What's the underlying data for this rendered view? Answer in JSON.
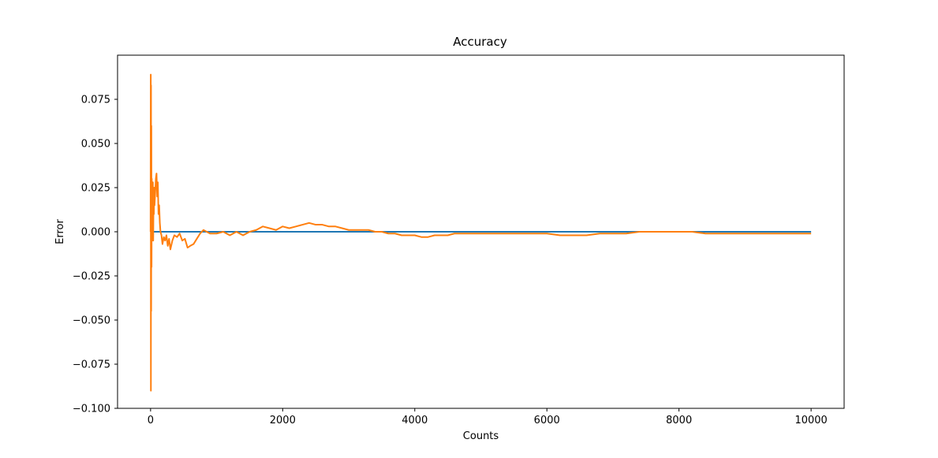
{
  "chart_data": {
    "type": "line",
    "title": "Accuracy",
    "xlabel": "Counts",
    "ylabel": "Error",
    "xlim": [
      -500,
      10500
    ],
    "ylim": [
      -0.1,
      0.1
    ],
    "x_ticks": [
      {
        "value": 0,
        "label": "0"
      },
      {
        "value": 2000,
        "label": "2000"
      },
      {
        "value": 4000,
        "label": "4000"
      },
      {
        "value": 6000,
        "label": "6000"
      },
      {
        "value": 8000,
        "label": "8000"
      },
      {
        "value": 10000,
        "label": "10000"
      }
    ],
    "y_ticks": [
      {
        "value": -0.1,
        "label": "−0.100"
      },
      {
        "value": -0.075,
        "label": "−0.075"
      },
      {
        "value": -0.05,
        "label": "−0.050"
      },
      {
        "value": -0.025,
        "label": "−0.025"
      },
      {
        "value": 0.0,
        "label": "0.000"
      },
      {
        "value": 0.025,
        "label": "0.025"
      },
      {
        "value": 0.05,
        "label": "0.050"
      },
      {
        "value": 0.075,
        "label": "0.075"
      }
    ],
    "grid": false,
    "series": [
      {
        "color": "#1f77b4",
        "x": [
          0,
          10000
        ],
        "y": [
          0.0,
          0.0
        ]
      },
      {
        "color": "#ff7f0e",
        "x": [
          0,
          3,
          5,
          7,
          9,
          12,
          15,
          18,
          22,
          26,
          30,
          35,
          40,
          45,
          50,
          55,
          60,
          70,
          80,
          90,
          100,
          110,
          120,
          130,
          140,
          150,
          165,
          180,
          200,
          220,
          240,
          260,
          280,
          300,
          330,
          360,
          400,
          440,
          480,
          520,
          560,
          600,
          650,
          700,
          750,
          800,
          900,
          1000,
          1100,
          1200,
          1300,
          1400,
          1500,
          1600,
          1700,
          1800,
          1900,
          2000,
          2100,
          2200,
          2300,
          2400,
          2500,
          2600,
          2700,
          2800,
          2900,
          3000,
          3100,
          3200,
          3300,
          3400,
          3500,
          3600,
          3700,
          3800,
          3900,
          4000,
          4100,
          4200,
          4300,
          4400,
          4500,
          4600,
          4700,
          4800,
          4900,
          5000,
          5200,
          5400,
          5600,
          5800,
          6000,
          6200,
          6400,
          6600,
          6800,
          7000,
          7200,
          7400,
          7600,
          7800,
          8000,
          8200,
          8400,
          8600,
          8800,
          9000,
          9200,
          9400,
          9600,
          9800,
          10000
        ],
        "y": [
          0.0,
          0.089,
          -0.09,
          0.083,
          -0.045,
          0.06,
          -0.02,
          0.03,
          -0.005,
          0.025,
          0.0,
          0.028,
          -0.005,
          0.02,
          0.01,
          0.025,
          0.015,
          0.022,
          0.03,
          0.033,
          0.02,
          0.028,
          0.01,
          0.015,
          0.005,
          0.0,
          -0.002,
          -0.007,
          -0.003,
          -0.005,
          -0.002,
          -0.008,
          -0.004,
          -0.01,
          -0.005,
          -0.002,
          -0.003,
          -0.001,
          -0.005,
          -0.004,
          -0.009,
          -0.008,
          -0.007,
          -0.004,
          -0.001,
          0.001,
          -0.001,
          -0.001,
          0.0,
          -0.002,
          0.0,
          -0.002,
          0.0,
          0.001,
          0.003,
          0.002,
          0.001,
          0.003,
          0.002,
          0.003,
          0.004,
          0.005,
          0.004,
          0.004,
          0.003,
          0.003,
          0.002,
          0.001,
          0.001,
          0.001,
          0.001,
          0.0,
          0.0,
          -0.001,
          -0.001,
          -0.002,
          -0.002,
          -0.002,
          -0.003,
          -0.003,
          -0.002,
          -0.002,
          -0.002,
          -0.001,
          -0.001,
          -0.001,
          -0.001,
          -0.001,
          -0.001,
          -0.001,
          -0.001,
          -0.001,
          -0.001,
          -0.002,
          -0.002,
          -0.002,
          -0.001,
          -0.001,
          -0.001,
          0.0,
          0.0,
          0.0,
          0.0,
          0.0,
          -0.001,
          -0.001,
          -0.001,
          -0.001,
          -0.001,
          -0.001,
          -0.001,
          -0.001,
          -0.001
        ]
      }
    ]
  }
}
